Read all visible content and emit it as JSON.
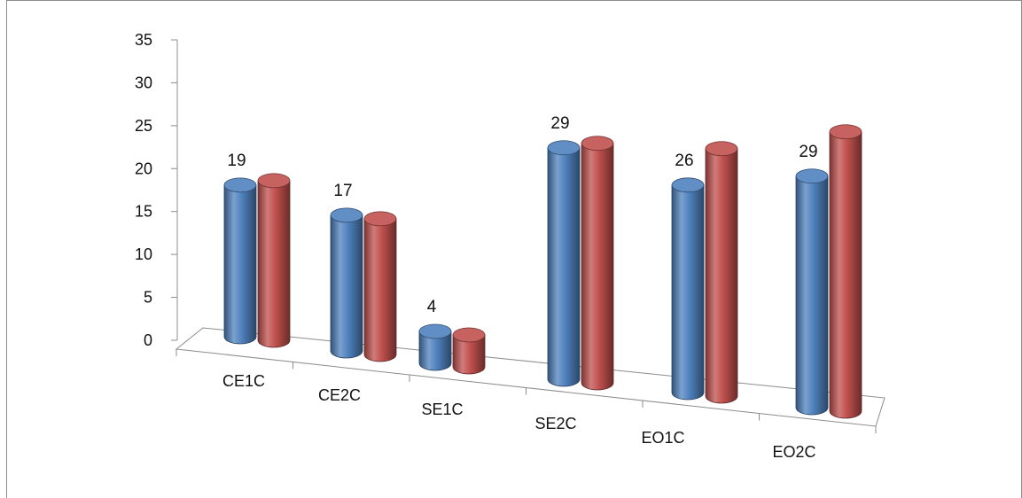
{
  "chart_data": {
    "type": "bar",
    "categories": [
      "CE1C",
      "CE2C",
      "SE1C",
      "SE2C",
      "EO1C",
      "EO2C"
    ],
    "series": [
      {
        "values": [
          19,
          17,
          4,
          29,
          26,
          29
        ],
        "color": "#4f81bd",
        "data_labels": [
          "19",
          "17",
          "4",
          "29",
          "26",
          "29"
        ]
      },
      {
        "values": [
          20,
          17,
          4,
          30,
          31,
          35
        ],
        "color": "#c0504d"
      }
    ],
    "ylim": [
      0,
      35
    ],
    "yticks": [
      "0",
      "5",
      "10",
      "15",
      "20",
      "25",
      "30",
      "35"
    ],
    "style": "3d-cylinder",
    "legend": "none",
    "grid": false
  }
}
